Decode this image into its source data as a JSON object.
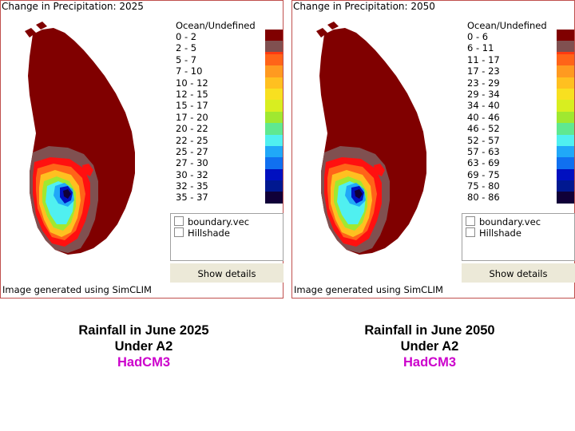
{
  "panels": [
    {
      "title": "Change in Precipitation: 2025",
      "legend_header": "Ocean/Undefined",
      "legend": [
        {
          "label": "0 - 2",
          "color": "#ff1010"
        },
        {
          "label": "2 - 5",
          "color": "#ff3a10"
        },
        {
          "label": "5 - 7",
          "color": "#ff6418"
        },
        {
          "label": "7 - 10",
          "color": "#ff9a20"
        },
        {
          "label": "10 - 12",
          "color": "#ffc020"
        },
        {
          "label": "12 - 15",
          "color": "#f8e020"
        },
        {
          "label": "15 - 17",
          "color": "#d8ee20"
        },
        {
          "label": "17 - 20",
          "color": "#a0e830"
        },
        {
          "label": "20 - 22",
          "color": "#60e890"
        },
        {
          "label": "22 - 25",
          "color": "#50f0f0"
        },
        {
          "label": "25 - 27",
          "color": "#20a8f8"
        },
        {
          "label": "27 - 30",
          "color": "#1070f0"
        },
        {
          "label": "30 - 32",
          "color": "#0010c0"
        },
        {
          "label": "32 - 35",
          "color": "#001890"
        },
        {
          "label": "35 - 37",
          "color": "#100038"
        }
      ],
      "layers": [
        "boundary.vec",
        "Hillshade"
      ],
      "details_label": "Show details",
      "footer": "Image generated using SimCLIM"
    },
    {
      "title": "Change in Precipitation: 2050",
      "legend_header": "Ocean/Undefined",
      "legend": [
        {
          "label": "0 - 6",
          "color": "#ff1010"
        },
        {
          "label": "6 - 11",
          "color": "#ff3a10"
        },
        {
          "label": "11 - 17",
          "color": "#ff6418"
        },
        {
          "label": "17 - 23",
          "color": "#ff9a20"
        },
        {
          "label": "23 - 29",
          "color": "#ffc020"
        },
        {
          "label": "29 - 34",
          "color": "#f8e020"
        },
        {
          "label": "34 - 40",
          "color": "#d8ee20"
        },
        {
          "label": "40 - 46",
          "color": "#a0e830"
        },
        {
          "label": "46 - 52",
          "color": "#60e890"
        },
        {
          "label": "52 - 57",
          "color": "#50f0f0"
        },
        {
          "label": "57 - 63",
          "color": "#20a8f8"
        },
        {
          "label": "63 - 69",
          "color": "#1070f0"
        },
        {
          "label": "69 - 75",
          "color": "#0010c0"
        },
        {
          "label": "75 - 80",
          "color": "#001890"
        },
        {
          "label": "80 - 86",
          "color": "#100038"
        }
      ],
      "layers": [
        "boundary.vec",
        "Hillshade"
      ],
      "details_label": "Show details",
      "footer": "Image generated using SimCLIM"
    }
  ],
  "captions": [
    {
      "line1": "Rainfall in June 2025",
      "line2": "Under A2",
      "model": "HadCM3"
    },
    {
      "line1": "Rainfall in June 2050",
      "line2": "Under A2",
      "model": "HadCM3"
    }
  ],
  "colors": {
    "ocean": "#800000",
    "negative": "#805050",
    "brown_mid": "#9b5a5a"
  }
}
